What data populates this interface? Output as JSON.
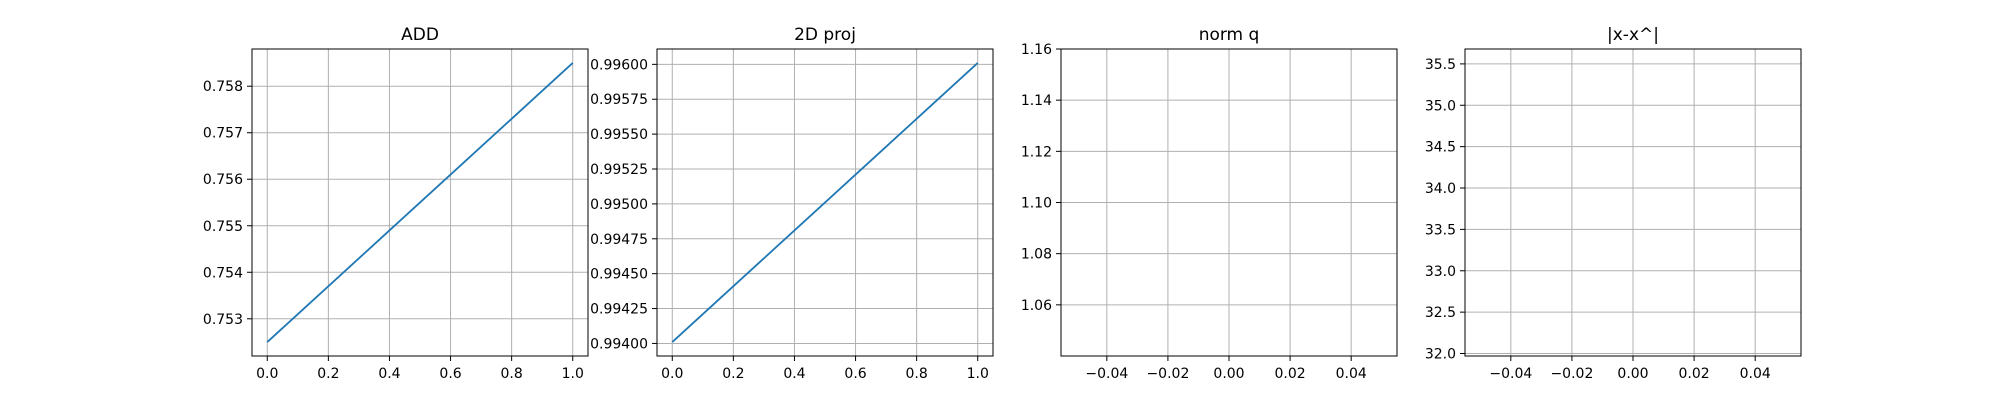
{
  "colors": {
    "series": "#1f77b4"
  },
  "chart_data": [
    {
      "type": "line",
      "title": "ADD",
      "xlabel": "",
      "ylabel": "",
      "grid": true,
      "x": [
        0.0,
        1.0
      ],
      "series": [
        {
          "values": [
            0.7525,
            0.7585
          ]
        }
      ],
      "xlim": [
        -0.05,
        1.05
      ],
      "ylim": [
        0.7522,
        0.7588
      ],
      "xticks": [
        0.0,
        0.2,
        0.4,
        0.6,
        0.8,
        1.0
      ],
      "xtick_labels": [
        "0.0",
        "0.2",
        "0.4",
        "0.6",
        "0.8",
        "1.0"
      ],
      "yticks": [
        0.753,
        0.754,
        0.755,
        0.756,
        0.757,
        0.758
      ],
      "ytick_labels": [
        "0.753",
        "0.754",
        "0.755",
        "0.756",
        "0.757",
        "0.758"
      ]
    },
    {
      "type": "line",
      "title": "2D proj",
      "xlabel": "",
      "ylabel": "",
      "grid": true,
      "x": [
        0.0,
        1.0
      ],
      "series": [
        {
          "values": [
            0.99401,
            0.99601
          ]
        }
      ],
      "xlim": [
        -0.05,
        1.05
      ],
      "ylim": [
        0.99391,
        0.99611
      ],
      "xticks": [
        0.0,
        0.2,
        0.4,
        0.6,
        0.8,
        1.0
      ],
      "xtick_labels": [
        "0.0",
        "0.2",
        "0.4",
        "0.6",
        "0.8",
        "1.0"
      ],
      "yticks": [
        0.994,
        0.99425,
        0.9945,
        0.99475,
        0.995,
        0.99525,
        0.9955,
        0.99575,
        0.996
      ],
      "ytick_labels": [
        "0.99400",
        "0.99425",
        "0.99450",
        "0.99475",
        "0.99500",
        "0.99525",
        "0.99550",
        "0.99575",
        "0.99600"
      ]
    },
    {
      "type": "line",
      "title": "norm q",
      "xlabel": "",
      "ylabel": "",
      "grid": true,
      "x": [],
      "series": [
        {
          "values": []
        }
      ],
      "xlim": [
        -0.055,
        0.055
      ],
      "ylim": [
        1.04,
        1.16
      ],
      "xticks": [
        -0.04,
        -0.02,
        0.0,
        0.02,
        0.04
      ],
      "xtick_labels": [
        "−0.04",
        "−0.02",
        "0.00",
        "0.02",
        "0.04"
      ],
      "yticks": [
        1.06,
        1.08,
        1.1,
        1.12,
        1.14,
        1.16
      ],
      "ytick_labels": [
        "1.06",
        "1.08",
        "1.10",
        "1.12",
        "1.14",
        "1.16"
      ]
    },
    {
      "type": "line",
      "title": "|x-x^|",
      "xlabel": "",
      "ylabel": "",
      "grid": true,
      "x": [],
      "series": [
        {
          "values": []
        }
      ],
      "xlim": [
        -0.055,
        0.055
      ],
      "ylim": [
        31.97,
        35.68
      ],
      "xticks": [
        -0.04,
        -0.02,
        0.0,
        0.02,
        0.04
      ],
      "xtick_labels": [
        "−0.04",
        "−0.02",
        "0.00",
        "0.02",
        "0.04"
      ],
      "yticks": [
        32.0,
        32.5,
        33.0,
        33.5,
        34.0,
        34.5,
        35.0,
        35.5
      ],
      "ytick_labels": [
        "32.0",
        "32.5",
        "33.0",
        "33.5",
        "34.0",
        "34.5",
        "35.0",
        "35.5"
      ]
    }
  ]
}
